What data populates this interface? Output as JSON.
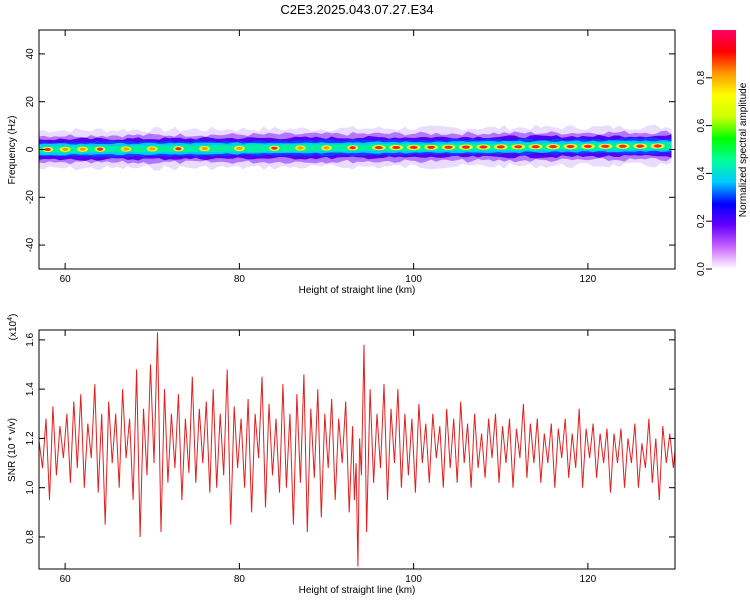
{
  "figure_title": "C2E3.2025.043.07.27.E34",
  "chart_data": [
    {
      "type": "heatmap",
      "xlabel": "Height of straight line (km)",
      "ylabel": "Frequency (Hz)",
      "xlim": [
        57,
        130
      ],
      "ylim": [
        -50,
        50
      ],
      "x_ticks": [
        60,
        80,
        100,
        120
      ],
      "y_ticks": [
        -40,
        -20,
        0,
        20,
        40
      ],
      "colorbar": {
        "label": "Normalized spectral amplitude",
        "range": [
          0,
          1
        ],
        "ticks": [
          "0.0",
          "0.2",
          "0.4",
          "0.6",
          "0.8"
        ],
        "colors": [
          "#ffffff",
          "#cc66ff",
          "#6600ff",
          "#0000ff",
          "#00ccff",
          "#00ff99",
          "#00ff00",
          "#ccff00",
          "#ffff00",
          "#ff9900",
          "#ff0000",
          "#ff0066"
        ]
      },
      "band": {
        "center_hz_start": 0,
        "center_hz_end": 1.5,
        "half_width_hz": 5
      },
      "hot_spots_km": [
        58,
        60,
        62,
        64,
        67,
        70,
        73,
        76,
        80,
        84,
        87,
        90,
        93,
        96,
        98,
        100,
        102,
        104,
        106,
        108,
        110,
        112,
        114,
        116,
        118,
        120,
        122,
        124,
        126,
        128
      ]
    },
    {
      "type": "line",
      "xlabel": "Height of straight line (km)",
      "ylabel": "SNR (10 * v/v)",
      "y_multiplier_label": "(x10",
      "y_multiplier_exp": "4",
      "xlim": [
        57,
        130
      ],
      "ylim": [
        0.67,
        1.64
      ],
      "x_ticks": [
        60,
        80,
        100,
        120
      ],
      "y_ticks": [
        "0.8",
        "1.0",
        "1.2",
        "1.4",
        "1.6"
      ],
      "series": [
        {
          "color": "#e02020",
          "points": [
            [
              57.0,
              1.19
            ],
            [
              57.4,
              1.08
            ],
            [
              57.8,
              1.28
            ],
            [
              58.2,
              0.95
            ],
            [
              58.6,
              1.33
            ],
            [
              59.0,
              1.05
            ],
            [
              59.4,
              1.25
            ],
            [
              59.8,
              1.12
            ],
            [
              60.2,
              1.3
            ],
            [
              60.6,
              1.02
            ],
            [
              61.0,
              1.35
            ],
            [
              61.4,
              1.08
            ],
            [
              61.8,
              1.38
            ],
            [
              62.2,
              1.0
            ],
            [
              62.6,
              1.26
            ],
            [
              63.0,
              1.12
            ],
            [
              63.4,
              1.42
            ],
            [
              63.8,
              0.98
            ],
            [
              64.2,
              1.3
            ],
            [
              64.6,
              0.85
            ],
            [
              65.0,
              1.35
            ],
            [
              65.4,
              1.1
            ],
            [
              65.8,
              1.3
            ],
            [
              66.2,
              1.0
            ],
            [
              66.6,
              1.4
            ],
            [
              67.0,
              1.12
            ],
            [
              67.4,
              1.28
            ],
            [
              67.8,
              0.95
            ],
            [
              68.2,
              1.48
            ],
            [
              68.6,
              0.8
            ],
            [
              69.0,
              1.32
            ],
            [
              69.4,
              1.05
            ],
            [
              69.8,
              1.5
            ],
            [
              70.2,
              1.1
            ],
            [
              70.6,
              1.63
            ],
            [
              71.0,
              0.82
            ],
            [
              71.4,
              1.4
            ],
            [
              71.8,
              1.02
            ],
            [
              72.2,
              1.3
            ],
            [
              72.6,
              1.08
            ],
            [
              73.0,
              1.38
            ],
            [
              73.4,
              0.95
            ],
            [
              73.8,
              1.28
            ],
            [
              74.2,
              1.06
            ],
            [
              74.6,
              1.45
            ],
            [
              75.0,
              1.02
            ],
            [
              75.4,
              1.32
            ],
            [
              75.8,
              1.1
            ],
            [
              76.2,
              1.35
            ],
            [
              76.6,
              0.98
            ],
            [
              77.0,
              1.4
            ],
            [
              77.4,
              1.0
            ],
            [
              77.8,
              1.3
            ],
            [
              78.2,
              1.05
            ],
            [
              78.6,
              1.48
            ],
            [
              79.0,
              0.85
            ],
            [
              79.4,
              1.33
            ],
            [
              79.8,
              1.08
            ],
            [
              80.2,
              1.28
            ],
            [
              80.6,
              1.0
            ],
            [
              81.0,
              1.36
            ],
            [
              81.4,
              0.9
            ],
            [
              81.8,
              1.3
            ],
            [
              82.2,
              1.12
            ],
            [
              82.6,
              1.45
            ],
            [
              83.0,
              0.92
            ],
            [
              83.4,
              1.34
            ],
            [
              83.8,
              1.05
            ],
            [
              84.2,
              1.28
            ],
            [
              84.6,
              0.98
            ],
            [
              85.0,
              1.42
            ],
            [
              85.4,
              1.0
            ],
            [
              85.8,
              1.3
            ],
            [
              86.2,
              0.85
            ],
            [
              86.6,
              1.38
            ],
            [
              87.0,
              1.02
            ],
            [
              87.4,
              1.46
            ],
            [
              87.8,
              0.82
            ],
            [
              88.2,
              1.32
            ],
            [
              88.6,
              1.04
            ],
            [
              89.0,
              1.4
            ],
            [
              89.4,
              0.88
            ],
            [
              89.8,
              1.3
            ],
            [
              90.2,
              1.08
            ],
            [
              90.6,
              1.36
            ],
            [
              91.0,
              0.95
            ],
            [
              91.4,
              1.28
            ],
            [
              91.8,
              1.1
            ],
            [
              92.2,
              1.35
            ],
            [
              92.6,
              0.9
            ],
            [
              93.0,
              1.25
            ],
            [
              93.2,
              0.95
            ],
            [
              93.4,
              1.1
            ],
            [
              93.6,
              0.68
            ],
            [
              93.8,
              1.2
            ],
            [
              94.0,
              1.05
            ],
            [
              94.3,
              1.58
            ],
            [
              94.6,
              0.82
            ],
            [
              95.0,
              1.4
            ],
            [
              95.4,
              1.02
            ],
            [
              95.8,
              1.3
            ],
            [
              96.2,
              1.08
            ],
            [
              96.6,
              1.42
            ],
            [
              97.0,
              0.95
            ],
            [
              97.4,
              1.32
            ],
            [
              97.8,
              1.1
            ],
            [
              98.2,
              1.4
            ],
            [
              98.6,
              1.0
            ],
            [
              99.0,
              1.3
            ],
            [
              99.4,
              1.05
            ],
            [
              99.8,
              1.28
            ],
            [
              100.2,
              0.98
            ],
            [
              100.6,
              1.34
            ],
            [
              101.0,
              1.1
            ],
            [
              101.4,
              1.26
            ],
            [
              101.8,
              1.02
            ],
            [
              102.2,
              1.3
            ],
            [
              102.6,
              1.12
            ],
            [
              103.0,
              1.25
            ],
            [
              103.4,
              1.0
            ],
            [
              103.8,
              1.32
            ],
            [
              104.2,
              1.08
            ],
            [
              104.6,
              1.28
            ],
            [
              105.0,
              1.02
            ],
            [
              105.4,
              1.35
            ],
            [
              105.8,
              1.1
            ],
            [
              106.2,
              1.26
            ],
            [
              106.6,
              1.0
            ],
            [
              107.0,
              1.3
            ],
            [
              107.4,
              1.08
            ],
            [
              107.8,
              1.22
            ],
            [
              108.2,
              1.04
            ],
            [
              108.6,
              1.28
            ],
            [
              109.0,
              1.12
            ],
            [
              109.4,
              1.3
            ],
            [
              109.8,
              1.02
            ],
            [
              110.2,
              1.25
            ],
            [
              110.6,
              1.1
            ],
            [
              111.0,
              1.28
            ],
            [
              111.4,
              1.0
            ],
            [
              111.8,
              1.24
            ],
            [
              112.2,
              1.12
            ],
            [
              112.6,
              1.34
            ],
            [
              113.0,
              1.04
            ],
            [
              113.4,
              1.26
            ],
            [
              113.8,
              1.1
            ],
            [
              114.2,
              1.28
            ],
            [
              114.6,
              1.02
            ],
            [
              115.0,
              1.22
            ],
            [
              115.4,
              1.1
            ],
            [
              115.8,
              1.26
            ],
            [
              116.2,
              1.0
            ],
            [
              116.6,
              1.24
            ],
            [
              117.0,
              1.12
            ],
            [
              117.4,
              1.28
            ],
            [
              117.8,
              1.04
            ],
            [
              118.2,
              1.22
            ],
            [
              118.6,
              1.08
            ],
            [
              119.0,
              1.32
            ],
            [
              119.4,
              1.0
            ],
            [
              119.8,
              1.24
            ],
            [
              120.2,
              1.12
            ],
            [
              120.6,
              1.26
            ],
            [
              121.0,
              1.04
            ],
            [
              121.4,
              1.22
            ],
            [
              121.8,
              1.1
            ],
            [
              122.2,
              1.24
            ],
            [
              122.6,
              0.98
            ],
            [
              123.0,
              1.22
            ],
            [
              123.4,
              1.1
            ],
            [
              123.8,
              1.24
            ],
            [
              124.2,
              1.0
            ],
            [
              124.6,
              1.2
            ],
            [
              125.0,
              1.1
            ],
            [
              125.4,
              1.26
            ],
            [
              125.8,
              1.0
            ],
            [
              126.2,
              1.18
            ],
            [
              126.6,
              1.08
            ],
            [
              127.0,
              1.28
            ],
            [
              127.4,
              1.02
            ],
            [
              127.8,
              1.2
            ],
            [
              128.2,
              0.95
            ],
            [
              128.6,
              1.25
            ],
            [
              129.0,
              1.1
            ],
            [
              129.4,
              1.22
            ],
            [
              129.8,
              1.08
            ],
            [
              130.0,
              1.15
            ]
          ]
        }
      ]
    }
  ]
}
